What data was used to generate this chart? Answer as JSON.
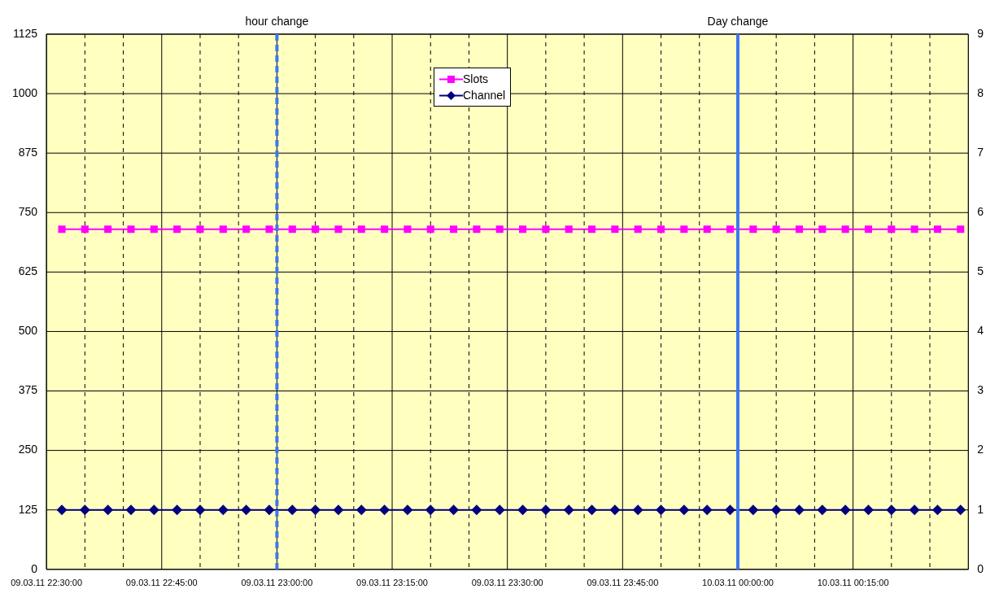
{
  "chart_data": {
    "type": "line",
    "x": [
      "--03-09T22:32",
      "--03-09T22:35",
      "--03-09T22:38",
      "--03-09T22:41",
      "--03-09T22:44",
      "--03-09T22:47",
      "--03-09T22:50",
      "--03-09T22:53",
      "--03-09T22:56",
      "--03-09T22:59",
      "--03-09T23:02",
      "--03-09T23:05",
      "--03-09T23:08",
      "--03-09T23:11",
      "--03-09T23:14",
      "--03-09T23:17",
      "--03-09T23:20",
      "--03-09T23:23",
      "--03-09T23:26",
      "--03-09T23:29",
      "--03-09T23:32",
      "--03-09T23:35",
      "--03-09T23:38",
      "--03-09T23:41",
      "--03-09T23:44",
      "--03-09T23:47",
      "--03-09T23:50",
      "--03-09T23:53",
      "--03-09T23:56",
      "--03-09T23:59",
      "--03-10T00:02",
      "--03-10T00:05",
      "--03-10T00:08",
      "--03-10T00:11",
      "--03-10T00:14",
      "--03-10T00:17",
      "--03-10T00:20",
      "--03-10T00:23",
      "--03-10T00:26",
      "--03-10T00:29"
    ],
    "series": [
      {
        "name": "Slots",
        "color": "#ff00ff",
        "marker": "square",
        "values": [
          715,
          715,
          715,
          715,
          715,
          715,
          715,
          715,
          715,
          715,
          715,
          715,
          715,
          715,
          715,
          715,
          715,
          715,
          715,
          715,
          715,
          715,
          715,
          715,
          715,
          715,
          715,
          715,
          715,
          715,
          715,
          715,
          715,
          715,
          715,
          715,
          715,
          715,
          715,
          715
        ]
      },
      {
        "name": "Channel",
        "color": "#000080",
        "marker": "diamond",
        "axis": "y2",
        "values": [
          1,
          1,
          1,
          1,
          1,
          1,
          1,
          1,
          1,
          1,
          1,
          1,
          1,
          1,
          1,
          1,
          1,
          1,
          1,
          1,
          1,
          1,
          1,
          1,
          1,
          1,
          1,
          1,
          1,
          1,
          1,
          1,
          1,
          1,
          1,
          1,
          1,
          1,
          1,
          1
        ]
      }
    ],
    "xlim": [
      "--03-09T22:30",
      "--03-10T00:30"
    ],
    "xticks": [
      {
        "value": "--03-09T22:30",
        "label": "09.03.11 22:30:00"
      },
      {
        "value": "--03-09T22:35",
        "label": null
      },
      {
        "value": "--03-09T22:40",
        "label": null
      },
      {
        "value": "--03-09T22:45",
        "label": "09.03.11 22:45:00"
      },
      {
        "value": "--03-09T22:50",
        "label": null
      },
      {
        "value": "--03-09T22:55",
        "label": null
      },
      {
        "value": "--03-09T23:00",
        "label": "09.03.11 23:00:00"
      },
      {
        "value": "--03-09T23:05",
        "label": null
      },
      {
        "value": "--03-09T23:10",
        "label": null
      },
      {
        "value": "--03-09T23:15",
        "label": "09.03.11 23:15:00"
      },
      {
        "value": "--03-09T23:20",
        "label": null
      },
      {
        "value": "--03-09T23:25",
        "label": null
      },
      {
        "value": "--03-09T23:30",
        "label": "09.03.11 23:30:00"
      },
      {
        "value": "--03-09T23:35",
        "label": null
      },
      {
        "value": "--03-09T23:40",
        "label": null
      },
      {
        "value": "--03-09T23:45",
        "label": "09.03.11 23:45:00"
      },
      {
        "value": "--03-09T23:50",
        "label": null
      },
      {
        "value": "--03-09T23:55",
        "label": null
      },
      {
        "value": "--03-10T00:00",
        "label": "10.03.11 00:00:00"
      },
      {
        "value": "--03-10T00:05",
        "label": null
      },
      {
        "value": "--03-10T00:10",
        "label": null
      },
      {
        "value": "--03-10T00:15",
        "label": "10.03.11 00:15:00"
      },
      {
        "value": "--03-10T00:20",
        "label": null
      },
      {
        "value": "--03-10T00:25",
        "label": null
      }
    ],
    "ylim": [
      0,
      1125
    ],
    "yticks": [
      0,
      125,
      250,
      375,
      500,
      625,
      750,
      875,
      1000,
      1125
    ],
    "y2lim": [
      0,
      9
    ],
    "y2ticks": [
      0,
      1,
      2,
      3,
      4,
      5,
      6,
      7,
      8,
      9
    ],
    "ref_lines": [
      {
        "axis": "x",
        "value": "--03-09T23:00",
        "label": "hour change",
        "color": "#3c78f0",
        "line_style": "dashed"
      },
      {
        "axis": "x",
        "value": "--03-10T00:00",
        "label": "Day change",
        "color": "#3c78f0",
        "line_style": "solid"
      }
    ],
    "grid": true,
    "legend": "top",
    "line_style": "solid"
  }
}
